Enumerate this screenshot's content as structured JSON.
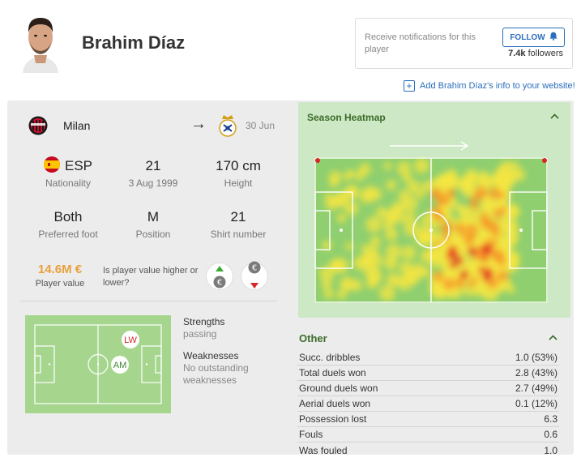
{
  "player": {
    "name": "Brahim Díaz"
  },
  "notify": {
    "text": "Receive notifications for this player",
    "follow_label": "FOLLOW",
    "followers_count": "7.4k",
    "followers_label": "followers"
  },
  "embed": {
    "label": "Add Brahim Díaz's info to your website!"
  },
  "club": {
    "current": "Milan",
    "contract": "30 Jun"
  },
  "details": {
    "nationality": {
      "value": "ESP",
      "label": "Nationality"
    },
    "age": {
      "value": "21",
      "label": "3 Aug 1999"
    },
    "height": {
      "value": "170 cm",
      "label": "Height"
    },
    "foot": {
      "value": "Both",
      "label": "Preferred foot"
    },
    "position": {
      "value": "M",
      "label": "Position"
    },
    "shirt": {
      "value": "21",
      "label": "Shirt number"
    }
  },
  "value": {
    "amount": "14.6M €",
    "label": "Player value",
    "question": "Is player value higher or lower?"
  },
  "positions": [
    "LW",
    "AM"
  ],
  "attributes": {
    "strengths_title": "Strengths",
    "strengths": "passing",
    "weaknesses_title": "Weaknesses",
    "weaknesses": "No outstanding weaknesses"
  },
  "heatmap": {
    "title": "Season Heatmap"
  },
  "other": {
    "title": "Other",
    "rows": [
      {
        "label": "Succ. dribbles",
        "value": "1.0 (53%)"
      },
      {
        "label": "Total duels won",
        "value": "2.8 (43%)"
      },
      {
        "label": "Ground duels won",
        "value": "2.7 (49%)"
      },
      {
        "label": "Aerial duels won",
        "value": "0.1 (12%)"
      },
      {
        "label": "Possession lost",
        "value": "6.3"
      },
      {
        "label": "Fouls",
        "value": "0.6"
      },
      {
        "label": "Was fouled",
        "value": "1.0"
      }
    ]
  },
  "colors": {
    "accent": "#2a6ebb",
    "value": "#e8a03a",
    "pitch": "#8fcf6f",
    "section_title": "#3b6b2a"
  }
}
